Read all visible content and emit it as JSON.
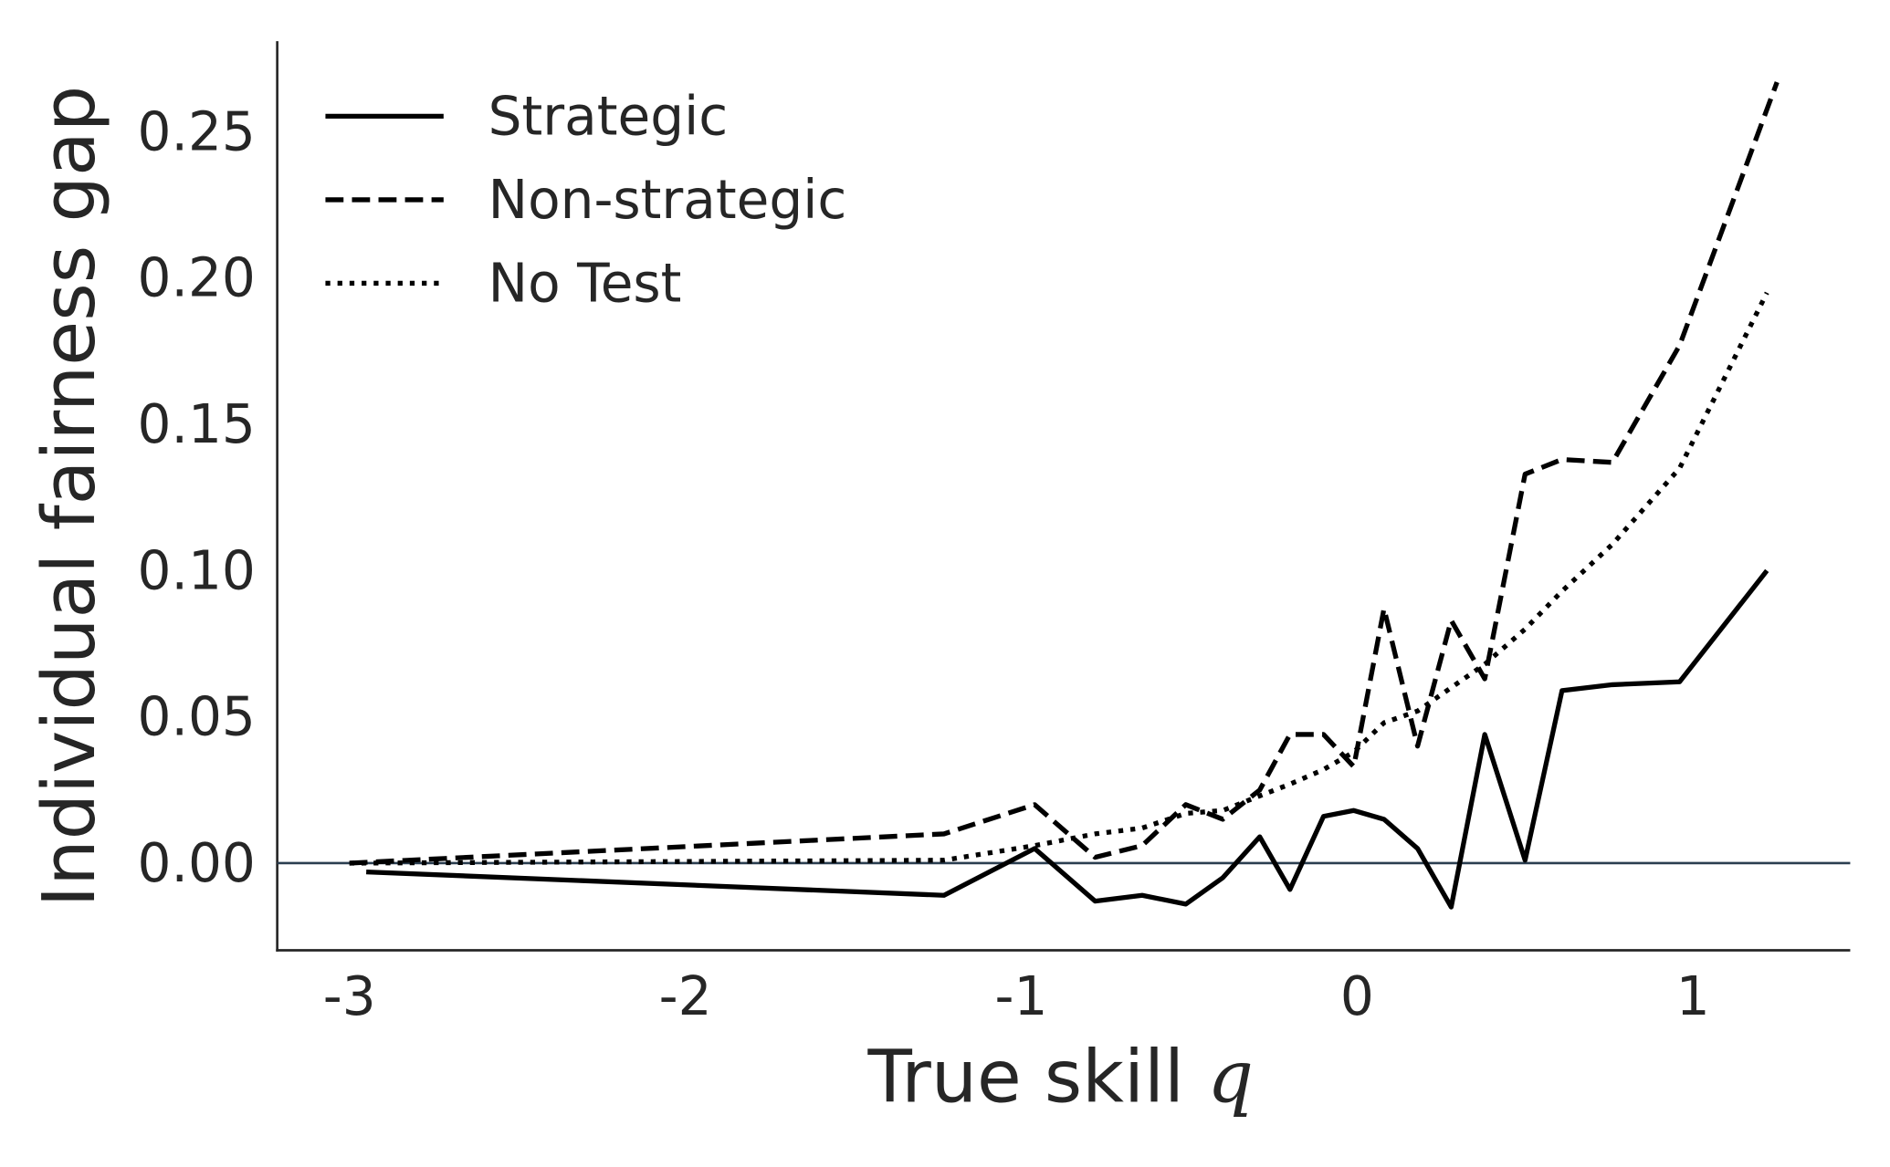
{
  "chart_data": {
    "type": "line",
    "xlabel": "True skill",
    "xlabel_symbol": "q",
    "ylabel": "Individual fairness gap",
    "xlim": [
      -3.215,
      1.468
    ],
    "ylim": [
      -0.0298,
      0.2806
    ],
    "xticks": [
      -3,
      -2,
      -1,
      0,
      1
    ],
    "yticks": [
      {
        "value": 0,
        "label": "0.00"
      },
      {
        "value": 0.05,
        "label": "0.05"
      },
      {
        "value": 0.1,
        "label": "0.10"
      },
      {
        "value": 0.15,
        "label": "0.15"
      },
      {
        "value": 0.2,
        "label": "0.20"
      },
      {
        "value": 0.25,
        "label": "0.25"
      }
    ],
    "hline": 0,
    "hline_color": "#2b3e50",
    "legend": "upper left",
    "series": [
      {
        "name": "Strategic",
        "color": "#000000",
        "style": "solid",
        "x": [
          -2.95,
          -1.23,
          -0.96,
          -0.78,
          -0.64,
          -0.51,
          -0.4,
          -0.29,
          -0.2,
          -0.1,
          -0.01,
          0.08,
          0.18,
          0.28,
          0.38,
          0.5,
          0.61,
          0.76,
          0.96,
          1.22
        ],
        "values": [
          -0.003,
          -0.011,
          0.005,
          -0.013,
          -0.011,
          -0.014,
          -0.005,
          0.009,
          -0.009,
          0.016,
          0.018,
          0.015,
          0.005,
          -0.015,
          0.044,
          0.001,
          0.059,
          0.061,
          0.062,
          0.1
        ]
      },
      {
        "name": "Non-strategic",
        "color": "#000000",
        "style": "dashed",
        "x": [
          -3.0,
          -1.23,
          -0.96,
          -0.78,
          -0.64,
          -0.51,
          -0.4,
          -0.29,
          -0.2,
          -0.1,
          -0.01,
          0.08,
          0.18,
          0.28,
          0.38,
          0.5,
          0.61,
          0.76,
          0.96,
          1.25
        ],
        "values": [
          0,
          0.01,
          0.02,
          0.002,
          0.006,
          0.02,
          0.015,
          0.025,
          0.044,
          0.044,
          0.033,
          0.087,
          0.04,
          0.083,
          0.063,
          0.133,
          0.138,
          0.137,
          0.177,
          0.267
        ]
      },
      {
        "name": "No Test",
        "color": "#000000",
        "style": "dotted",
        "x": [
          -3.0,
          -1.23,
          -0.96,
          -0.78,
          -0.64,
          -0.51,
          -0.4,
          -0.29,
          -0.2,
          -0.1,
          -0.01,
          0.08,
          0.18,
          0.28,
          0.38,
          0.5,
          0.61,
          0.76,
          0.96,
          1.22
        ],
        "values": [
          0,
          0.001,
          0.006,
          0.01,
          0.012,
          0.017,
          0.018,
          0.023,
          0.027,
          0.032,
          0.038,
          0.048,
          0.052,
          0.06,
          0.068,
          0.08,
          0.093,
          0.109,
          0.135,
          0.195
        ]
      }
    ]
  }
}
